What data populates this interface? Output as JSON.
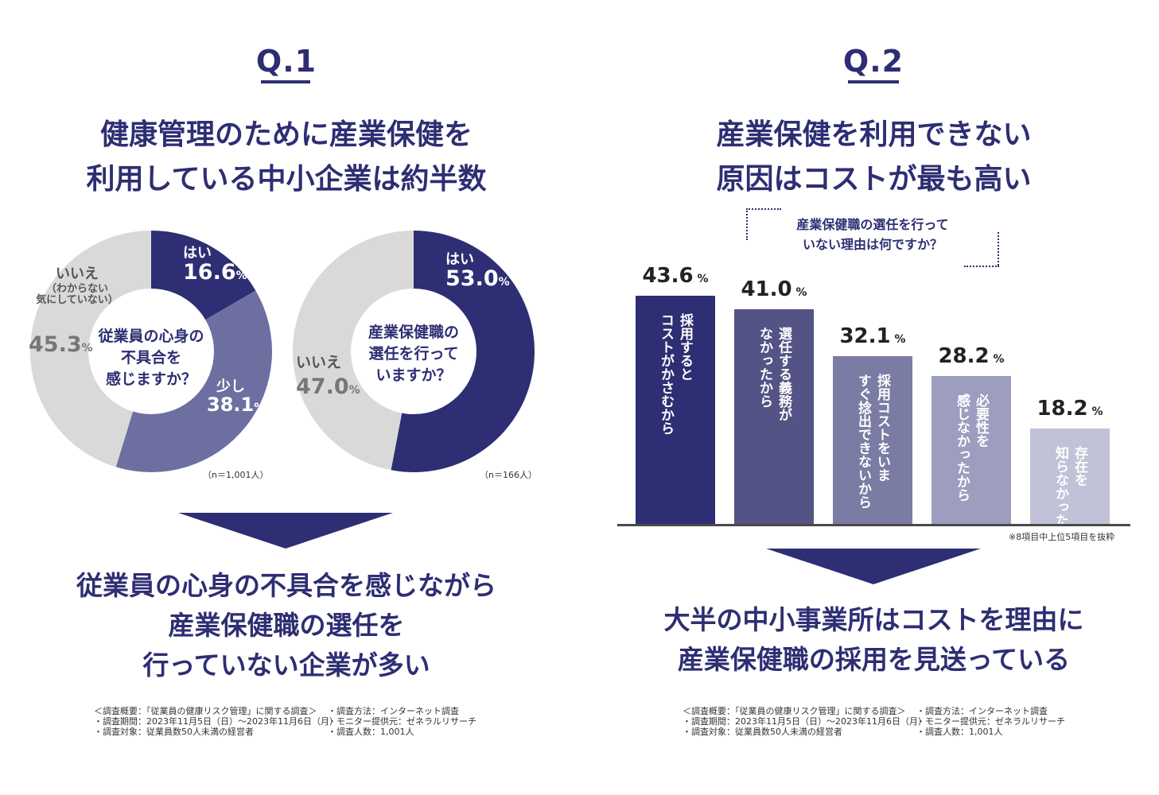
{
  "q1": {
    "label": "Q.1",
    "headline": [
      "健康管理のために産業保健を",
      "利用している中小企業は約半数"
    ],
    "donut1": {
      "center": [
        "従業員の心身の",
        "不具合を",
        "感じますか？"
      ],
      "yes_label": "はい",
      "yes_value": "16.6",
      "yes_fraction": 0.166,
      "little_label": "少し",
      "little_value": "38.1",
      "little_fraction": 0.381,
      "no_label": "いいえ",
      "no_sub": [
        "（わからない",
        "気にしていない）"
      ],
      "no_value": "45.3",
      "no_fraction": 0.453,
      "note": "（n＝1,001人）"
    },
    "donut2": {
      "center": [
        "産業保健職の",
        "選任を行って",
        "いますか？"
      ],
      "yes_label": "はい",
      "yes_value": "53.0",
      "yes_fraction": 0.53,
      "no_label": "いいえ",
      "no_value": "47.0",
      "no_fraction": 0.47,
      "note": "（n＝166人）"
    },
    "conclusion": [
      "従業員の心身の不具合を感じながら",
      "産業保健職の選任を",
      "行っていない企業が多い"
    ]
  },
  "q2": {
    "label": "Q.2",
    "headline": [
      "産業保健を利用できない",
      "原因はコストが最も高い"
    ],
    "question": [
      "産業保健職の選任を行って",
      "いない理由は何ですか？"
    ],
    "footnote": "※8項目中上位5項目を抜粋",
    "conclusion": [
      "大半の中小事業所はコストを理由に",
      "産業保健職の採用を見送っている"
    ]
  },
  "percent_sign": "%",
  "chart_data": [
    {
      "type": "pie",
      "title": "従業員の心身の不具合を感じますか？",
      "categories": [
        "はい",
        "少し",
        "いいえ（わからない気にしていない）"
      ],
      "values": [
        16.6,
        38.1,
        45.3
      ],
      "colors": [
        "#2d2e73",
        "#6e6fa1",
        "#d9d9d9"
      ]
    },
    {
      "type": "pie",
      "title": "産業保健職の選任を行っていますか？",
      "categories": [
        "はい",
        "いいえ"
      ],
      "values": [
        53.0,
        47.0
      ],
      "colors": [
        "#2d2e73",
        "#d9d9d9"
      ]
    },
    {
      "type": "bar",
      "title": "産業保健職の選任を行っていない理由は何ですか？",
      "categories": [
        "採用するとコストがかさむから",
        "選任する義務がなかったから",
        "採用コストをいますぐ捻出できないから",
        "必要性を感じなかったから",
        "存在を知らなかった"
      ],
      "labels": [
        "採用すると\nコストがかさむから",
        "選任する義務が\nなかったから",
        "採用コストをいま\nすぐ捻出できないから",
        "必要性を\n感じなかったから",
        "存在を\n知らなかった"
      ],
      "values": [
        43.6,
        41.0,
        32.1,
        28.2,
        18.2
      ],
      "value_labels": [
        "43.6",
        "41.0",
        "32.1",
        "28.2",
        "18.2"
      ],
      "colors": [
        "#2d2e73",
        "#535385",
        "#7b7ca4",
        "#9c9dbf",
        "#c1c2d8"
      ],
      "ylim": [
        0,
        43.6
      ]
    }
  ],
  "survey": {
    "left": [
      "＜調査概要：「従業員の健康リスク管理」に関する調査＞",
      "・調査期間：2023年11月5日（日）〜2023年11月6日（月）",
      "・調査対象：従業員数50人未満の経営者"
    ],
    "right": [
      "・調査方法：インターネット調査",
      "・モニター提供元：ゼネラルリサーチ",
      "・調査人数：1,001人"
    ]
  }
}
